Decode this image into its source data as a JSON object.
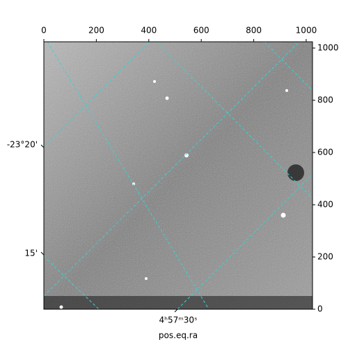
{
  "chart_data": {
    "type": "image",
    "xlabel": "pos.eq.ra",
    "xlim": [
      0,
      1024
    ],
    "ylim": [
      0,
      1024
    ],
    "xticks": [
      0,
      200,
      400,
      600,
      800,
      1000
    ],
    "yticks": [
      0,
      200,
      400,
      600,
      800,
      1000
    ],
    "dec_tick_labels": [
      "-23°20'",
      "15'"
    ],
    "ra_tick_labels": [
      "4ʰ57ᵐ30ˢ"
    ]
  }
}
